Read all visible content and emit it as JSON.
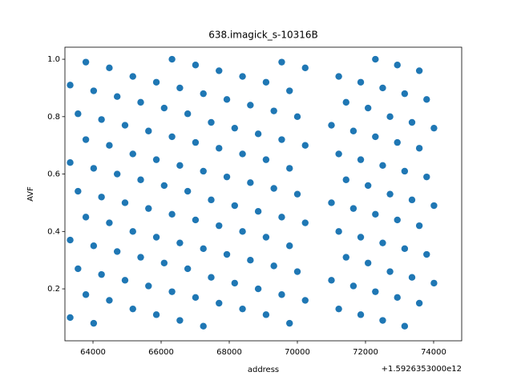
{
  "chart_data": {
    "type": "scatter",
    "title": "638.imagick_s-10316B",
    "x_label": "address",
    "y_label": "AVF",
    "x_offset_label": "+1.5926353000e12",
    "color": "#1f77b4",
    "xlim": [
      63176,
      74824
    ],
    "ylim": [
      0.019,
      1.042
    ],
    "xticks": [
      64000,
      66000,
      68000,
      70000,
      72000,
      74000
    ],
    "yticks": [
      0.2,
      0.4,
      0.6,
      0.8,
      {
        "value": 1,
        "label": "1.0"
      }
    ],
    "x": [
      63330,
      63330,
      63330,
      63330,
      63560,
      63560,
      63560,
      63790,
      63790,
      63790,
      63790,
      64020,
      64020,
      64020,
      64020,
      64250,
      64250,
      64250,
      64480,
      64480,
      64480,
      64480,
      64710,
      64710,
      64710,
      64940,
      64940,
      64940,
      65170,
      65170,
      65170,
      65170,
      65400,
      65400,
      65400,
      65630,
      65630,
      65630,
      65860,
      65860,
      65860,
      65860,
      66090,
      66090,
      66090,
      66320,
      66320,
      66320,
      66320,
      66550,
      66550,
      66550,
      66550,
      66780,
      66780,
      66780,
      67010,
      67010,
      67010,
      67010,
      67240,
      67240,
      67240,
      67240,
      67470,
      67470,
      67470,
      67700,
      67700,
      67700,
      67700,
      67930,
      67930,
      67930,
      68160,
      68160,
      68160,
      68390,
      68390,
      68390,
      68390,
      68620,
      68620,
      68620,
      68850,
      68850,
      68850,
      69080,
      69080,
      69080,
      69080,
      69310,
      69310,
      69310,
      69540,
      69540,
      69540,
      69540,
      69770,
      69770,
      69770,
      69770,
      70000,
      70000,
      70000,
      70230,
      70230,
      70230,
      70230,
      71000,
      71000,
      71000,
      71215,
      71215,
      71215,
      71215,
      71430,
      71430,
      71430,
      71645,
      71645,
      71645,
      71860,
      71860,
      71860,
      71860,
      72075,
      72075,
      72075,
      72290,
      72290,
      72290,
      72290,
      72505,
      72505,
      72505,
      72505,
      72720,
      72720,
      72720,
      72935,
      72935,
      72935,
      72935,
      73150,
      73150,
      73150,
      73150,
      73365,
      73365,
      73365,
      73580,
      73580,
      73580,
      73580,
      73795,
      73795,
      73795,
      74010,
      74010,
      74010
    ],
    "y": [
      0.1,
      0.37,
      0.64,
      0.91,
      0.27,
      0.54,
      0.81,
      0.18,
      0.45,
      0.72,
      0.99,
      0.08,
      0.35,
      0.62,
      0.89,
      0.25,
      0.52,
      0.79,
      0.16,
      0.43,
      0.7,
      0.97,
      0.33,
      0.6,
      0.87,
      0.23,
      0.5,
      0.77,
      0.13,
      0.4,
      0.67,
      0.94,
      0.31,
      0.58,
      0.85,
      0.21,
      0.48,
      0.75,
      0.11,
      0.38,
      0.65,
      0.92,
      0.29,
      0.56,
      0.83,
      0.19,
      0.46,
      0.73,
      1.0,
      0.09,
      0.36,
      0.63,
      0.9,
      0.27,
      0.54,
      0.81,
      0.17,
      0.44,
      0.71,
      0.98,
      0.07,
      0.34,
      0.61,
      0.88,
      0.24,
      0.51,
      0.78,
      0.15,
      0.42,
      0.69,
      0.96,
      0.32,
      0.59,
      0.86,
      0.22,
      0.49,
      0.76,
      0.13,
      0.4,
      0.67,
      0.94,
      0.3,
      0.57,
      0.84,
      0.2,
      0.47,
      0.74,
      0.11,
      0.38,
      0.65,
      0.92,
      0.28,
      0.55,
      0.82,
      0.18,
      0.45,
      0.72,
      0.99,
      0.08,
      0.35,
      0.62,
      0.89,
      0.26,
      0.53,
      0.8,
      0.16,
      0.43,
      0.7,
      0.97,
      0.23,
      0.5,
      0.77,
      0.13,
      0.4,
      0.67,
      0.94,
      0.31,
      0.58,
      0.85,
      0.21,
      0.48,
      0.75,
      0.11,
      0.38,
      0.65,
      0.92,
      0.29,
      0.56,
      0.83,
      0.19,
      0.46,
      0.73,
      1.0,
      0.09,
      0.36,
      0.63,
      0.9,
      0.26,
      0.53,
      0.8,
      0.17,
      0.44,
      0.71,
      0.98,
      0.07,
      0.34,
      0.61,
      0.88,
      0.24,
      0.51,
      0.78,
      0.15,
      0.42,
      0.69,
      0.96,
      0.32,
      0.59,
      0.86,
      0.22,
      0.49,
      0.76
    ]
  }
}
